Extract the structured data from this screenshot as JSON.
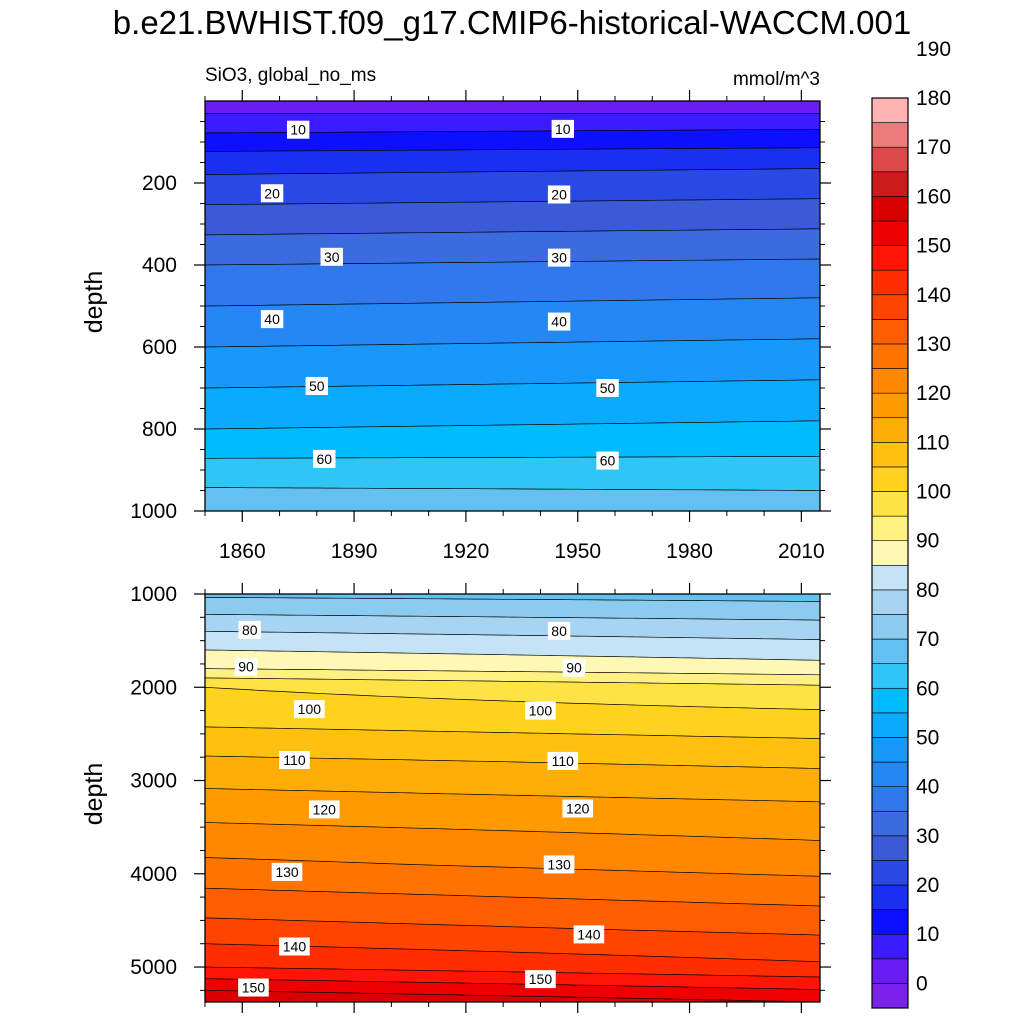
{
  "title": "b.e21.BWHIST.f09_g17.CMIP6-historical-WACCM.001",
  "chart_data": [
    {
      "type": "heatmap",
      "name": "upper-panel",
      "variable_label": "SiO3, global_no_ms",
      "units_label": "mmol/m^3",
      "ylabel": "depth",
      "xlim": [
        1850,
        2015
      ],
      "ylim": [
        1000,
        0
      ],
      "y_reversed": true,
      "x_ticks": [
        1860,
        1890,
        1920,
        1950,
        1980,
        2010
      ],
      "x_tick_labels": [
        "1860",
        "1890",
        "1920",
        "1950",
        "1980",
        "2010"
      ],
      "y_ticks": [
        200,
        400,
        600,
        800,
        1000
      ],
      "y_tick_labels": [
        "200",
        "400",
        "600",
        "800",
        "1000"
      ],
      "depth_profile": {
        "depths": [
          0,
          60,
          150,
          400,
          600,
          800,
          1000
        ],
        "values_1850": [
          2,
          8,
          18,
          35,
          45,
          55,
          69
        ],
        "values_2015": [
          1,
          9,
          19,
          36,
          46,
          56,
          68
        ]
      },
      "contour_levels": [
        10,
        20,
        30,
        40,
        50,
        60
      ],
      "contour_labels": [
        {
          "text": "10",
          "year": 1875,
          "depth": 70
        },
        {
          "text": "10",
          "year": 1946,
          "depth": 68
        },
        {
          "text": "20",
          "year": 1868,
          "depth": 225
        },
        {
          "text": "20",
          "year": 1945,
          "depth": 228
        },
        {
          "text": "30",
          "year": 1884,
          "depth": 380
        },
        {
          "text": "30",
          "year": 1945,
          "depth": 382
        },
        {
          "text": "40",
          "year": 1868,
          "depth": 532
        },
        {
          "text": "40",
          "year": 1945,
          "depth": 538
        },
        {
          "text": "50",
          "year": 1880,
          "depth": 695
        },
        {
          "text": "50",
          "year": 1958,
          "depth": 700
        },
        {
          "text": "60",
          "year": 1882,
          "depth": 873
        },
        {
          "text": "60",
          "year": 1958,
          "depth": 877
        }
      ]
    },
    {
      "type": "heatmap",
      "name": "lower-panel",
      "ylabel": "depth",
      "xlim": [
        1850,
        2015
      ],
      "ylim": [
        5375,
        1000
      ],
      "y_reversed": true,
      "x_ticks": [
        1860,
        1890,
        1920,
        1950,
        1980,
        2010
      ],
      "y_ticks": [
        1000,
        2000,
        3000,
        4000,
        5000
      ],
      "y_tick_labels": [
        "1000",
        "2000",
        "3000",
        "4000",
        "5000"
      ],
      "depth_profile": {
        "depths": [
          1000,
          1400,
          1800,
          2000,
          2300,
          2800,
          3300,
          3900,
          4600,
          5000,
          5375
        ],
        "values_1850": [
          69,
          80,
          90,
          100,
          103,
          111,
          118,
          126,
          137,
          145,
          160
        ],
        "values_2015": [
          68,
          78,
          87,
          96,
          101,
          109,
          116,
          123,
          134,
          141,
          155
        ]
      },
      "contour_levels": [
        80,
        90,
        100,
        110,
        120,
        130,
        140,
        150
      ],
      "contour_labels": [
        {
          "text": "80",
          "year": 1862,
          "depth": 1385
        },
        {
          "text": "80",
          "year": 1945,
          "depth": 1395
        },
        {
          "text": "90",
          "year": 1861,
          "depth": 1780
        },
        {
          "text": "90",
          "year": 1949,
          "depth": 1790
        },
        {
          "text": "100",
          "year": 1878,
          "depth": 2235
        },
        {
          "text": "100",
          "year": 1940,
          "depth": 2250
        },
        {
          "text": "110",
          "year": 1874,
          "depth": 2780
        },
        {
          "text": "110",
          "year": 1946,
          "depth": 2790
        },
        {
          "text": "120",
          "year": 1882,
          "depth": 3310
        },
        {
          "text": "120",
          "year": 1950,
          "depth": 3300
        },
        {
          "text": "130",
          "year": 1872,
          "depth": 3980
        },
        {
          "text": "130",
          "year": 1945,
          "depth": 3900
        },
        {
          "text": "140",
          "year": 1874,
          "depth": 4780
        },
        {
          "text": "140",
          "year": 1953,
          "depth": 4650
        },
        {
          "text": "150",
          "year": 1863,
          "depth": 5220
        },
        {
          "text": "150",
          "year": 1940,
          "depth": 5130
        }
      ]
    }
  ],
  "colorbar": {
    "label_values": [
      "0",
      "10",
      "20",
      "30",
      "40",
      "50",
      "60",
      "70",
      "80",
      "90",
      "100",
      "110",
      "120",
      "130",
      "140",
      "150",
      "160",
      "170",
      "180",
      "190"
    ],
    "bin_colors": [
      "#7b22ea",
      "#6a1cf5",
      "#3b1cff",
      "#0d10ff",
      "#1a30f0",
      "#2a48e4",
      "#3a5ad8",
      "#3b6bdf",
      "#3078ec",
      "#2487f4",
      "#1898fb",
      "#0aaafe",
      "#00bcff",
      "#2ec6f7",
      "#62c1f0",
      "#8ccbf0",
      "#a6d4f2",
      "#c5e3f6",
      "#fff8b4",
      "#fff082",
      "#ffe345",
      "#ffd21e",
      "#ffc010",
      "#ffae08",
      "#ff9b00",
      "#ff8800",
      "#ff7400",
      "#ff5e00",
      "#ff4400",
      "#ff2d00",
      "#ff1505",
      "#ee0000",
      "#d80000",
      "#cd1a1a",
      "#dd4848",
      "#ee7b7b",
      "#ffb2b2"
    ]
  }
}
